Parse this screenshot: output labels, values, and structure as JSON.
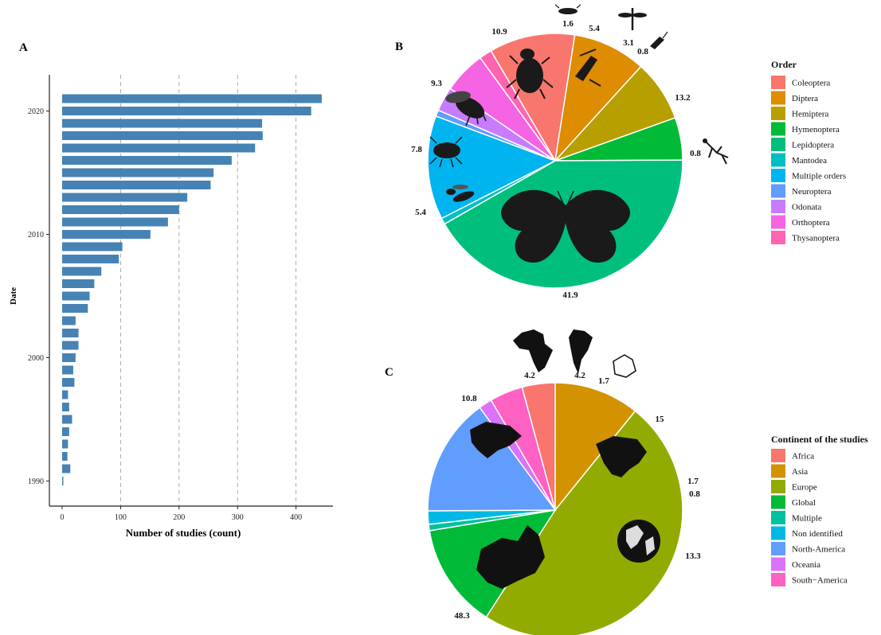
{
  "panels": {
    "a": "A",
    "b": "B",
    "c": "C"
  },
  "chart_data": [
    {
      "type": "bar",
      "orientation": "horizontal",
      "xlabel": "Number of studies (count)",
      "ylabel": "Date",
      "xlim": [
        0,
        450
      ],
      "xticks": [
        "0",
        "100",
        "200",
        "300",
        "400"
      ],
      "yticks": [
        "1990",
        "2000",
        "2010",
        "2020"
      ],
      "grid": "vertical dashed",
      "color": "#4682B4",
      "categories": [
        1990,
        1991,
        1992,
        1993,
        1994,
        1995,
        1996,
        1997,
        1998,
        1999,
        2000,
        2001,
        2002,
        2003,
        2004,
        2005,
        2006,
        2007,
        2008,
        2009,
        2010,
        2011,
        2012,
        2013,
        2014,
        2015,
        2016,
        2017,
        2018,
        2019,
        2020,
        2021
      ],
      "values": [
        2,
        14,
        9,
        10,
        12,
        17,
        12,
        10,
        21,
        19,
        23,
        28,
        28,
        23,
        44,
        47,
        55,
        67,
        97,
        103,
        151,
        181,
        200,
        214,
        254,
        259,
        290,
        330,
        343,
        342,
        426,
        444
      ]
    },
    {
      "type": "pie",
      "legend_title": "Order",
      "legend_position": "right",
      "categories": [
        "Coleoptera",
        "Diptera",
        "Hemiptera",
        "Hymenoptera",
        "Lepidoptera",
        "Mantodea",
        "Multiple orders",
        "Neuroptera",
        "Odonata",
        "Orthoptera",
        "Thysanoptera"
      ],
      "colors": [
        "#F8766D",
        "#DE8C00",
        "#B79F00",
        "#00BA38",
        "#00BF7D",
        "#00BFC4",
        "#00B4F0",
        "#619CFF",
        "#C77CFF",
        "#F564E3",
        "#FF64B0"
      ],
      "values": [
        10.9,
        9.3,
        7.8,
        5.4,
        41.9,
        0.8,
        13.2,
        0.8,
        3.1,
        5.4,
        1.6
      ],
      "labels": [
        "10.9",
        "9.3",
        "7.8",
        "5.4",
        "41.9",
        "0.8",
        "13.2",
        "0.8",
        "3.1",
        "5.4",
        "1.6"
      ]
    },
    {
      "type": "pie",
      "legend_title": "Continent of the studies",
      "legend_position": "right",
      "categories": [
        "Africa",
        "Asia",
        "Europe",
        "Global",
        "Multiple",
        "Non identified",
        "North-America",
        "Oceania",
        "South−America"
      ],
      "colors": [
        "#F8766D",
        "#D39200",
        "#93AA00",
        "#00BA38",
        "#00C19F",
        "#00B9E3",
        "#619CFF",
        "#DB72FB",
        "#FF61C3"
      ],
      "values": [
        4.2,
        10.8,
        48.3,
        13.3,
        0.8,
        1.7,
        15,
        1.7,
        4.2
      ],
      "labels": [
        "4.2",
        "10.8",
        "48.3",
        "13.3",
        "0.8",
        "1.7",
        "15",
        "1.7",
        "4.2"
      ]
    }
  ]
}
